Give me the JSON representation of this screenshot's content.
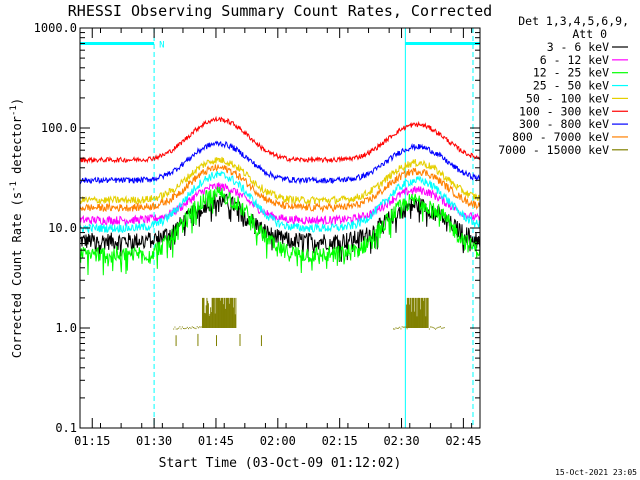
{
  "chart_data": {
    "type": "line",
    "title": "RHESSI Observing Summary Count Rates, Corrected",
    "xlabel": "Start Time (03-Oct-09 01:12:02)",
    "ylabel": "Corrected Count Rate (s⁻¹ detector⁻¹)",
    "ylabel_parts": [
      "Corrected Count Rate (s",
      "-1",
      " detector",
      "-1",
      ")"
    ],
    "y_scale": "log",
    "ylim": [
      0.1,
      1000
    ],
    "y_ticks": [
      {
        "value": 1000,
        "label": "1000.0"
      },
      {
        "value": 100,
        "label": "100.0"
      },
      {
        "value": 10,
        "label": "10.0"
      },
      {
        "value": 1,
        "label": "1.0"
      },
      {
        "value": 0.1,
        "label": "0.1"
      }
    ],
    "x_unit": "minutes since 01:12:02",
    "xlim": [
      0,
      97
    ],
    "x_ticks": [
      {
        "value": 2.97,
        "label": "01:15"
      },
      {
        "value": 17.97,
        "label": "01:30"
      },
      {
        "value": 32.97,
        "label": "01:45"
      },
      {
        "value": 47.97,
        "label": "02:00"
      },
      {
        "value": 62.97,
        "label": "02:15"
      },
      {
        "value": 77.97,
        "label": "02:30"
      },
      {
        "value": 92.97,
        "label": "02:45"
      }
    ],
    "legend": {
      "title_line1": "Det 1,3,4,5,6,9,",
      "title_line2": "Att 0",
      "placement": "right"
    },
    "series": [
      {
        "name": "3 - 6 keV",
        "color": "#000000",
        "base": 7.5,
        "peak1": 19,
        "peak2": 17,
        "noise": 0.09,
        "dips": true
      },
      {
        "name": "6 - 12 keV",
        "color": "#ff00ff",
        "base": 12,
        "peak1": 26,
        "peak2": 24,
        "noise": 0.045,
        "dips": false
      },
      {
        "name": "12 - 25 keV",
        "color": "#00ff00",
        "base": 5.5,
        "peak1": 22,
        "peak2": 19,
        "noise": 0.09,
        "dips": true
      },
      {
        "name": "25 - 50 keV",
        "color": "#00ffff",
        "base": 10,
        "peak1": 34,
        "peak2": 30,
        "noise": 0.045,
        "dips": false
      },
      {
        "name": "50 - 100 keV",
        "color": "#e5cf00",
        "base": 19,
        "peak1": 48,
        "peak2": 45,
        "noise": 0.04,
        "dips": false
      },
      {
        "name": "100 - 300 keV",
        "color": "#ff0000",
        "base": 48,
        "peak1": 122,
        "peak2": 108,
        "noise": 0.025,
        "dips": false
      },
      {
        "name": "300 - 800 keV",
        "color": "#0000ff",
        "base": 30,
        "peak1": 70,
        "peak2": 65,
        "noise": 0.03,
        "dips": false
      },
      {
        "name": "800 - 7000 keV",
        "color": "#ff8000",
        "base": 16,
        "peak1": 40,
        "peak2": 37,
        "noise": 0.04,
        "dips": false
      },
      {
        "name": "7000 - 15000 keV",
        "color": "#808000",
        "base": 0,
        "peak1": 0,
        "peak2": 0,
        "noise": 0,
        "dips": false
      }
    ],
    "orbit": {
      "peak1_time": 33.6,
      "peak2_time": 81.7,
      "width": 8.4
    },
    "flags": {
      "color": "#00ffff",
      "label": "N",
      "segments": [
        [
          0,
          17.97
        ],
        [
          78.9,
          97
        ]
      ]
    },
    "boundaries": [
      {
        "value": 0.0,
        "style": "solid"
      },
      {
        "value": 17.97,
        "style": "dashed"
      },
      {
        "value": 78.9,
        "style": "solid"
      },
      {
        "value": 95.3,
        "style": "dashed"
      }
    ],
    "high_energy_bursts": {
      "color": "#808000",
      "blocks": [
        [
          29.7,
          37.9
        ],
        [
          79.2,
          84.6
        ]
      ],
      "level": 2.0,
      "floor": 1.0,
      "tails": [
        [
          22.6,
          29.7
        ],
        [
          75.9,
          79.2
        ],
        [
          84.6,
          88.2
        ]
      ]
    }
  },
  "footer": {
    "timestamp": "15-Oct-2021 23:05"
  }
}
